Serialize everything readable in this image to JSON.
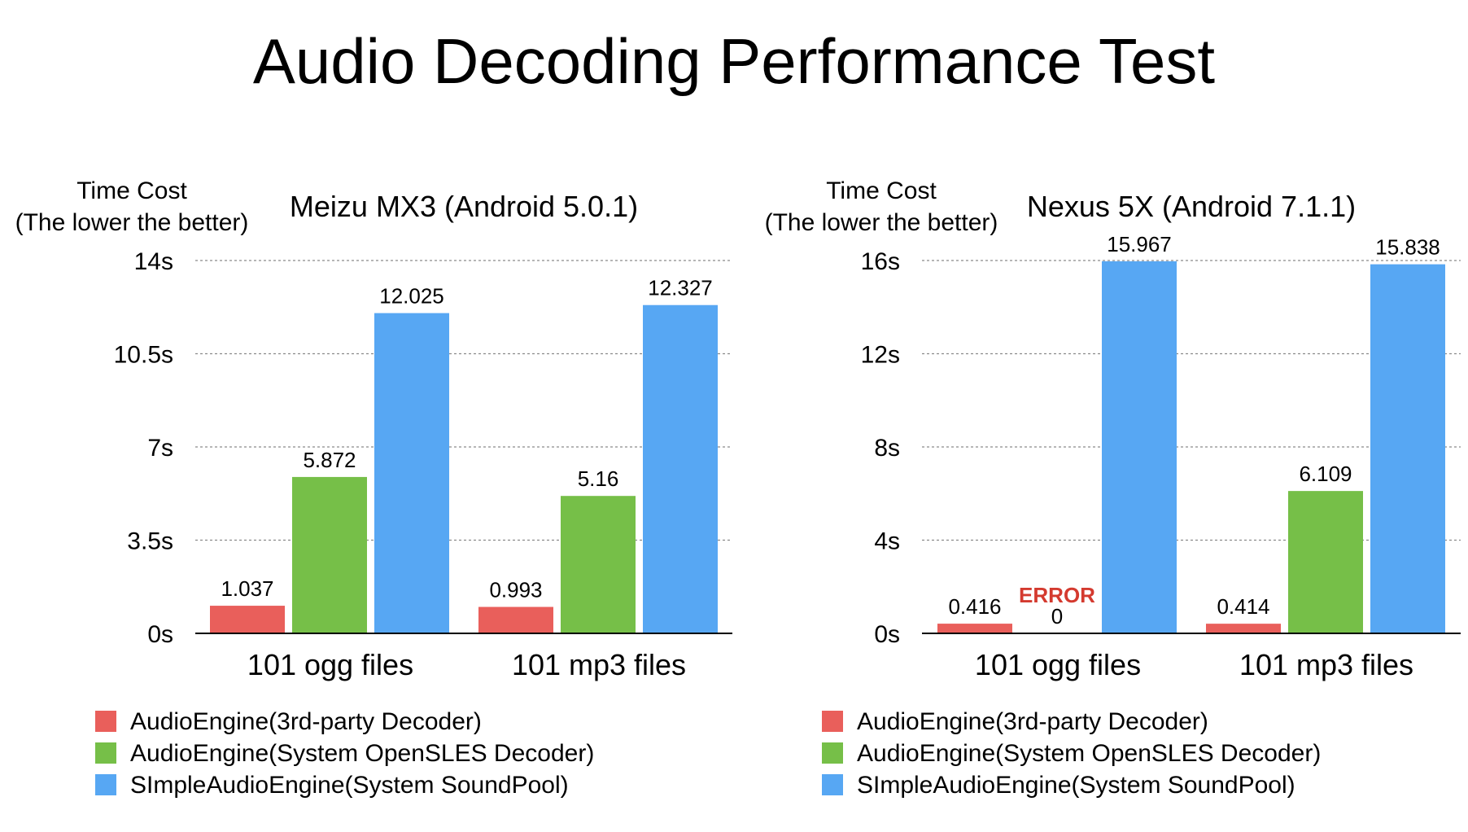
{
  "page": {
    "title": "Audio Decoding Performance Test"
  },
  "chart_data": [
    {
      "type": "bar",
      "title": "Meizu MX3 (Android 5.0.1)",
      "ylabel_line1": "Time Cost",
      "ylabel_line2": "(The lower the better)",
      "categories": [
        "101 ogg files",
        "101 mp3 files"
      ],
      "ylim": [
        0,
        14
      ],
      "yticks": [
        {
          "value": 0,
          "label": "0s"
        },
        {
          "value": 3.5,
          "label": "3.5s"
        },
        {
          "value": 7,
          "label": "7s"
        },
        {
          "value": 10.5,
          "label": "10.5s"
        },
        {
          "value": 14,
          "label": "14s"
        }
      ],
      "series": [
        {
          "name": "AudioEngine(3rd-party Decoder)",
          "color": "#e95f5b",
          "values": [
            1.037,
            0.993
          ],
          "labels": [
            "1.037",
            "0.993"
          ],
          "notes": [
            "",
            ""
          ]
        },
        {
          "name": "AudioEngine(System OpenSLES Decoder)",
          "color": "#76bf48",
          "values": [
            5.872,
            5.16
          ],
          "labels": [
            "5.872",
            "5.16"
          ],
          "notes": [
            "",
            ""
          ]
        },
        {
          "name": "SImpleAudioEngine(System SoundPool)",
          "color": "#57a7f3",
          "values": [
            12.025,
            12.327
          ],
          "labels": [
            "12.025",
            "12.327"
          ],
          "notes": [
            "",
            ""
          ]
        }
      ],
      "legend_position": "bottom-left"
    },
    {
      "type": "bar",
      "title": "Nexus 5X (Android 7.1.1)",
      "ylabel_line1": "Time Cost",
      "ylabel_line2": "(The lower the better)",
      "categories": [
        "101 ogg files",
        "101 mp3 files"
      ],
      "ylim": [
        0,
        16
      ],
      "yticks": [
        {
          "value": 0,
          "label": "0s"
        },
        {
          "value": 4,
          "label": "4s"
        },
        {
          "value": 8,
          "label": "8s"
        },
        {
          "value": 12,
          "label": "12s"
        },
        {
          "value": 16,
          "label": "16s"
        }
      ],
      "series": [
        {
          "name": "AudioEngine(3rd-party Decoder)",
          "color": "#e95f5b",
          "values": [
            0.416,
            0.414
          ],
          "labels": [
            "0.416",
            "0.414"
          ],
          "notes": [
            "",
            ""
          ]
        },
        {
          "name": "AudioEngine(System OpenSLES Decoder)",
          "color": "#76bf48",
          "values": [
            0,
            6.109
          ],
          "labels": [
            "0",
            "6.109"
          ],
          "notes": [
            "ERROR",
            ""
          ]
        },
        {
          "name": "SImpleAudioEngine(System SoundPool)",
          "color": "#57a7f3",
          "values": [
            15.967,
            15.838
          ],
          "labels": [
            "15.967",
            "15.838"
          ],
          "notes": [
            "",
            ""
          ]
        }
      ],
      "legend_position": "bottom-left"
    }
  ]
}
